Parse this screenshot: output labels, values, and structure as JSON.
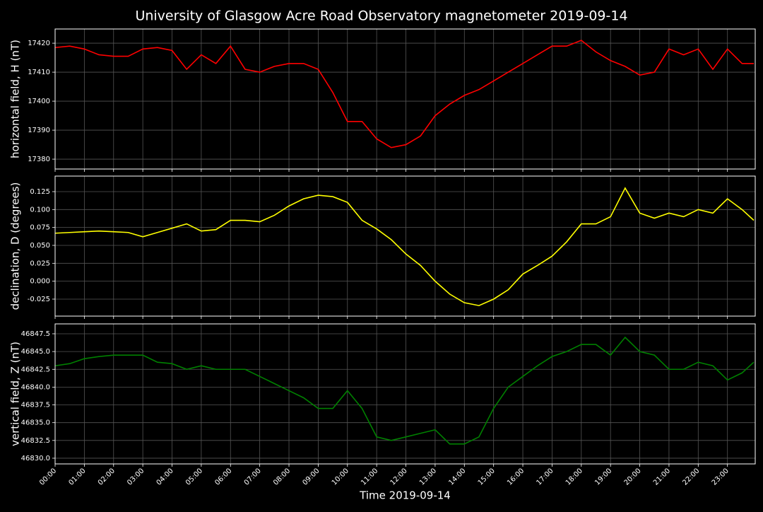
{
  "title": "University of Glasgow Acre Road Observatory magnetometer 2019-09-14",
  "chart_data": [
    {
      "type": "line",
      "ylabel": "horizontal field, H (nT)",
      "color": "#ff0000",
      "grid": true,
      "x": [
        0,
        0.5,
        1,
        1.5,
        2,
        2.5,
        3,
        3.5,
        4,
        4.5,
        5,
        5.5,
        6,
        6.5,
        7,
        7.5,
        8,
        8.5,
        9,
        9.5,
        10,
        10.5,
        11,
        11.5,
        12,
        12.5,
        13,
        13.5,
        14,
        14.5,
        15,
        15.5,
        16,
        16.5,
        17,
        17.5,
        18,
        18.5,
        19,
        19.5,
        20,
        20.5,
        21,
        21.5,
        22,
        22.5,
        23,
        23.5,
        23.9
      ],
      "values": [
        17418.5,
        17419,
        17418,
        17416,
        17415.5,
        17415.5,
        17418,
        17418.5,
        17417.5,
        17411,
        17416,
        17413,
        17419,
        17411,
        17410,
        17412,
        17413,
        17413,
        17411,
        17403,
        17393,
        17393,
        17387,
        17384,
        17385,
        17388,
        17395,
        17399,
        17402,
        17404,
        17407,
        17410,
        17413,
        17416,
        17419,
        17419,
        17421,
        17417,
        17414,
        17412,
        17409,
        17410,
        17418,
        17416,
        17418,
        17411,
        17418,
        17413,
        17413
      ],
      "xlim": [
        0,
        23.95
      ],
      "xticks": [
        0,
        1,
        2,
        3,
        4,
        5,
        6,
        7,
        8,
        9,
        10,
        11,
        12,
        13,
        14,
        15,
        16,
        17,
        18,
        19,
        20,
        21,
        22,
        23
      ],
      "ylim": [
        17376.6,
        17424.9
      ],
      "yticks": [
        17380,
        17390,
        17400,
        17410,
        17420
      ]
    },
    {
      "type": "line",
      "ylabel": "declination, D (degrees)",
      "color": "#ffff00",
      "grid": true,
      "x": [
        0,
        0.5,
        1,
        1.5,
        2,
        2.5,
        3,
        3.5,
        4,
        4.5,
        5,
        5.5,
        6,
        6.5,
        7,
        7.5,
        8,
        8.5,
        9,
        9.5,
        10,
        10.5,
        11,
        11.5,
        12,
        12.5,
        13,
        13.5,
        14,
        14.5,
        15,
        15.5,
        16,
        16.5,
        17,
        17.5,
        18,
        18.5,
        19,
        19.5,
        20,
        20.5,
        21,
        21.5,
        22,
        22.5,
        23,
        23.5,
        23.9
      ],
      "values": [
        0.067,
        0.068,
        0.069,
        0.07,
        0.069,
        0.068,
        0.062,
        0.068,
        0.074,
        0.08,
        0.07,
        0.072,
        0.085,
        0.085,
        0.083,
        0.092,
        0.105,
        0.115,
        0.12,
        0.118,
        0.11,
        0.085,
        0.073,
        0.058,
        0.038,
        0.022,
        0.0,
        -0.018,
        -0.03,
        -0.034,
        -0.025,
        -0.012,
        0.01,
        0.022,
        0.035,
        0.055,
        0.08,
        0.08,
        0.09,
        0.13,
        0.095,
        0.088,
        0.095,
        0.09,
        0.1,
        0.095,
        0.115,
        0.1,
        0.085
      ],
      "xlim": [
        0,
        23.95
      ],
      "xticks": [
        0,
        1,
        2,
        3,
        4,
        5,
        6,
        7,
        8,
        9,
        10,
        11,
        12,
        13,
        14,
        15,
        16,
        17,
        18,
        19,
        20,
        21,
        22,
        23
      ],
      "ylim": [
        -0.0487,
        0.1467
      ],
      "yticks": [
        -0.025,
        {
          "value": 0,
          "label": "0.000"
        },
        0.025,
        {
          "value": 0.05,
          "label": "0.050"
        },
        0.075,
        {
          "value": 0.1,
          "label": "0.100"
        },
        0.125
      ]
    },
    {
      "type": "line",
      "ylabel": "vertical field, Z (nT)",
      "xlabel": "Time 2019-09-14",
      "color": "#008000",
      "grid": true,
      "x": [
        0,
        0.5,
        1,
        1.5,
        2,
        2.5,
        3,
        3.5,
        4,
        4.5,
        5,
        5.5,
        6,
        6.5,
        7,
        7.5,
        8,
        8.5,
        9,
        9.5,
        10,
        10.5,
        11,
        11.5,
        12,
        12.5,
        13,
        13.5,
        14,
        14.5,
        15,
        15.5,
        16,
        16.5,
        17,
        17.5,
        18,
        18.5,
        19,
        19.5,
        20,
        20.5,
        21,
        21.5,
        22,
        22.5,
        23,
        23.5,
        23.9
      ],
      "values": [
        46843,
        46843.3,
        46844,
        46844.3,
        46844.5,
        46844.5,
        46844.5,
        46843.5,
        46843.3,
        46842.5,
        46843,
        46842.5,
        46842.5,
        46842.5,
        46841.5,
        46840.5,
        46839.5,
        46838.5,
        46837,
        46837,
        46839.5,
        46837,
        46833,
        46832.5,
        46833,
        46833.5,
        46834,
        46832,
        46832,
        46833,
        46837,
        46840,
        46841.5,
        46843,
        46844.3,
        46845,
        46846,
        46846,
        46844.5,
        46847,
        46845,
        46844.5,
        46842.5,
        46842.5,
        46843.5,
        46843,
        46841,
        46842,
        46843.5
      ],
      "xlim": [
        0,
        23.95
      ],
      "xticks": [
        {
          "value": 0,
          "label": "00:00"
        },
        {
          "value": 1,
          "label": "01:00"
        },
        {
          "value": 2,
          "label": "02:00"
        },
        {
          "value": 3,
          "label": "03:00"
        },
        {
          "value": 4,
          "label": "04:00"
        },
        {
          "value": 5,
          "label": "05:00"
        },
        {
          "value": 6,
          "label": "06:00"
        },
        {
          "value": 7,
          "label": "07:00"
        },
        {
          "value": 8,
          "label": "08:00"
        },
        {
          "value": 9,
          "label": "09:00"
        },
        {
          "value": 10,
          "label": "10:00"
        },
        {
          "value": 11,
          "label": "11:00"
        },
        {
          "value": 12,
          "label": "12:00"
        },
        {
          "value": 13,
          "label": "13:00"
        },
        {
          "value": 14,
          "label": "14:00"
        },
        {
          "value": 15,
          "label": "15:00"
        },
        {
          "value": 16,
          "label": "16:00"
        },
        {
          "value": 17,
          "label": "17:00"
        },
        {
          "value": 18,
          "label": "18:00"
        },
        {
          "value": 19,
          "label": "19:00"
        },
        {
          "value": 20,
          "label": "20:00"
        },
        {
          "value": 21,
          "label": "21:00"
        },
        {
          "value": 22,
          "label": "22:00"
        },
        {
          "value": 23,
          "label": "23:00"
        }
      ],
      "ylim": [
        46829.2,
        46848.89
      ],
      "yticks": [
        {
          "value": 46830,
          "label": "46830.0"
        },
        {
          "value": 46832.5,
          "label": "46832.5"
        },
        {
          "value": 46835,
          "label": "46835.0"
        },
        {
          "value": 46837.5,
          "label": "46837.5"
        },
        {
          "value": 46840,
          "label": "46840.0"
        },
        {
          "value": 46842.5,
          "label": "46842.5"
        },
        {
          "value": 46845,
          "label": "46845.0"
        },
        {
          "value": 46847.5,
          "label": "46847.5"
        }
      ]
    }
  ]
}
